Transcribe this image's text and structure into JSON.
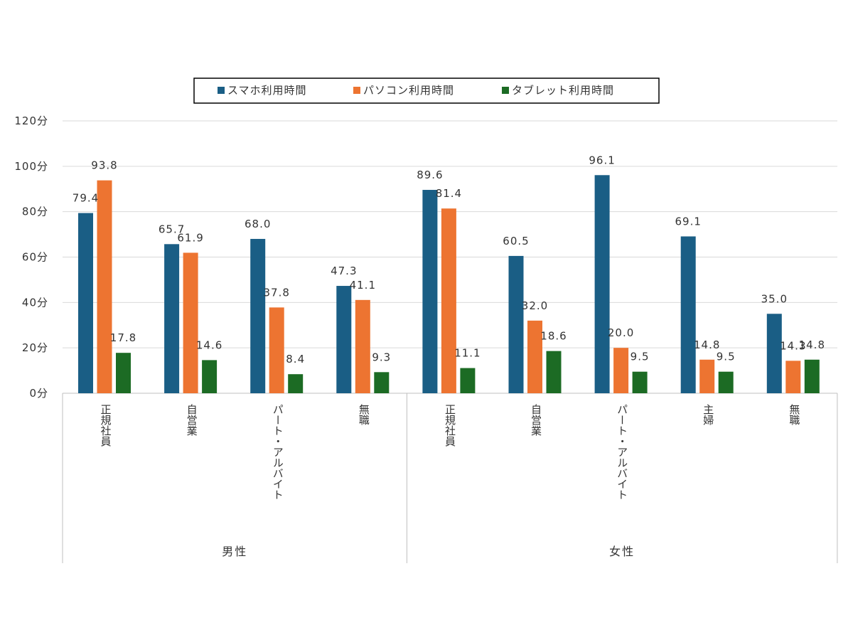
{
  "chart_data": {
    "type": "bar",
    "y_unit": "分",
    "ylim": [
      0,
      120
    ],
    "y_ticks": [
      0,
      20,
      40,
      60,
      80,
      100,
      120
    ],
    "grid": true,
    "legend_position": "top",
    "groups": [
      {
        "name": "男性",
        "categories": [
          "正規社員",
          "自営業",
          "パート・アルバイト",
          "無職"
        ]
      },
      {
        "name": "女性",
        "categories": [
          "正規社員",
          "自営業",
          "パート・アルバイト",
          "主婦",
          "無職"
        ]
      }
    ],
    "series": [
      {
        "name": "スマホ利用時間",
        "color": "#1a5e85",
        "values": [
          79.4,
          65.7,
          68.0,
          47.3,
          89.6,
          60.5,
          96.1,
          69.1,
          35.0
        ]
      },
      {
        "name": "パソコン利用時間",
        "color": "#ed7431",
        "values": [
          93.8,
          61.9,
          37.8,
          41.1,
          81.4,
          32.0,
          20.0,
          14.8,
          14.3
        ]
      },
      {
        "name": "タブレット利用時間",
        "color": "#1c6b24",
        "values": [
          17.8,
          14.6,
          8.4,
          9.3,
          11.1,
          18.6,
          9.5,
          9.5,
          14.8
        ]
      }
    ]
  }
}
